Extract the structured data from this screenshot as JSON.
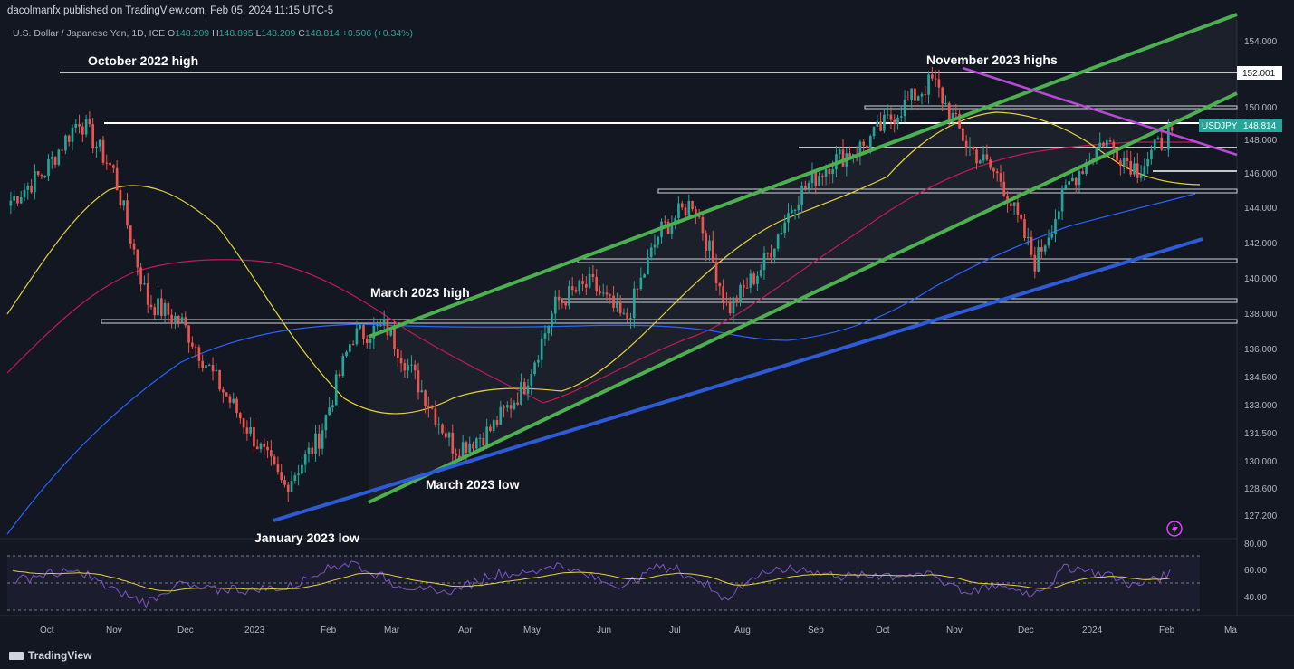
{
  "header": {
    "publisher": "dacolmanfx published on TradingView.com, Feb 05, 2024 11:15 UTC-5"
  },
  "ohlc": {
    "symbol_desc": "U.S. Dollar / Japanese Yen, 1D, ICE",
    "o_label": "O",
    "o": "148.209",
    "h_label": "H",
    "h": "148.895",
    "l_label": "L",
    "l": "148.209",
    "c_label": "C",
    "c": "148.814",
    "change": "+0.506 (+0.34%)"
  },
  "footer": {
    "brand": "TradingView"
  },
  "chart_data": {
    "type": "candlestick",
    "symbol": "USDJPY",
    "last_price_label": "148.814",
    "level_label": "152.001",
    "y_ticks": [
      "154.000",
      "152.000",
      "150.000",
      "148.000",
      "146.000",
      "144.000",
      "142.000",
      "140.000",
      "138.000",
      "136.000",
      "134.500",
      "133.000",
      "131.500",
      "130.000",
      "128.600",
      "127.200"
    ],
    "x_ticks": [
      "Oct",
      "Nov",
      "Dec",
      "2023",
      "Feb",
      "Mar",
      "Apr",
      "May",
      "Jun",
      "Jul",
      "Aug",
      "Sep",
      "Oct",
      "Nov",
      "Dec",
      "2024",
      "Feb",
      "Ma"
    ],
    "rsi_ticks": [
      "80.00",
      "60.00",
      "40.00"
    ],
    "annotations": [
      "October 2022 high",
      "November 2023 highs",
      "March 2023 high",
      "March 2023 low",
      "January 2023 low"
    ],
    "approx_closes": [
      144.8,
      146.5,
      149.5,
      146.5,
      139,
      137.8,
      134.5,
      131.5,
      128.3,
      131,
      137,
      137.5,
      134,
      130.5,
      131.5,
      134,
      139,
      140,
      137.8,
      143,
      144.8,
      138.5,
      141,
      145,
      147,
      148,
      150,
      151.7,
      148,
      146,
      141.2,
      145.8,
      148.3,
      146.6,
      148.81
    ],
    "colors": {
      "up": "#26a69a",
      "down": "#ef5350",
      "ma50": "#e6d13d",
      "ma100": "#c2185b",
      "ma200": "#2962ff",
      "channel": "#4caf50",
      "support": "#2d5bd6",
      "resistance": "#b84ad6"
    }
  }
}
